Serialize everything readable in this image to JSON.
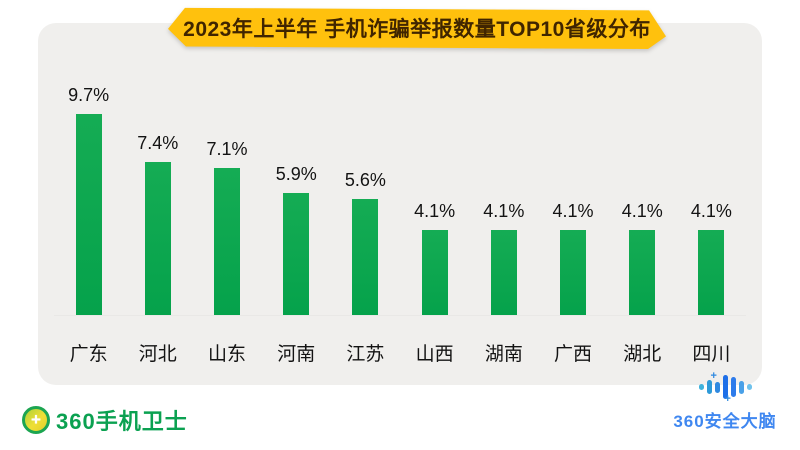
{
  "banner": {
    "title": "2023年上半年 手机诈骗举报数量TOP10省级分布",
    "bg_color": "#FFC10D",
    "text_color": "#402500"
  },
  "chart_data": {
    "type": "bar",
    "title": "2023年上半年 手机诈骗举报数量TOP10省级分布",
    "categories": [
      "广东",
      "河北",
      "山东",
      "河南",
      "江苏",
      "山西",
      "湖南",
      "广西",
      "湖北",
      "四川"
    ],
    "values": [
      9.7,
      7.4,
      7.1,
      5.9,
      5.6,
      4.1,
      4.1,
      4.1,
      4.1,
      4.1
    ],
    "value_labels": [
      "9.7%",
      "7.4%",
      "7.1%",
      "5.9%",
      "5.6%",
      "4.1%",
      "4.1%",
      "4.1%",
      "4.1%",
      "4.1%"
    ],
    "unit": "%",
    "xlabel": "",
    "ylabel": "",
    "ylim": [
      0,
      10.5
    ],
    "grid": false,
    "legend": false,
    "bar_color": "#0CA750",
    "background_color": "#F0EFED"
  },
  "footer": {
    "left_logo": {
      "text": "360手机卫士",
      "color": "#0BA151"
    },
    "right_logo": {
      "text": "360安全大脑",
      "color": "#3F87F0"
    }
  },
  "icons": {
    "left_logo": "shield-plus-icon",
    "right_logo": "bar-brain-icon"
  }
}
